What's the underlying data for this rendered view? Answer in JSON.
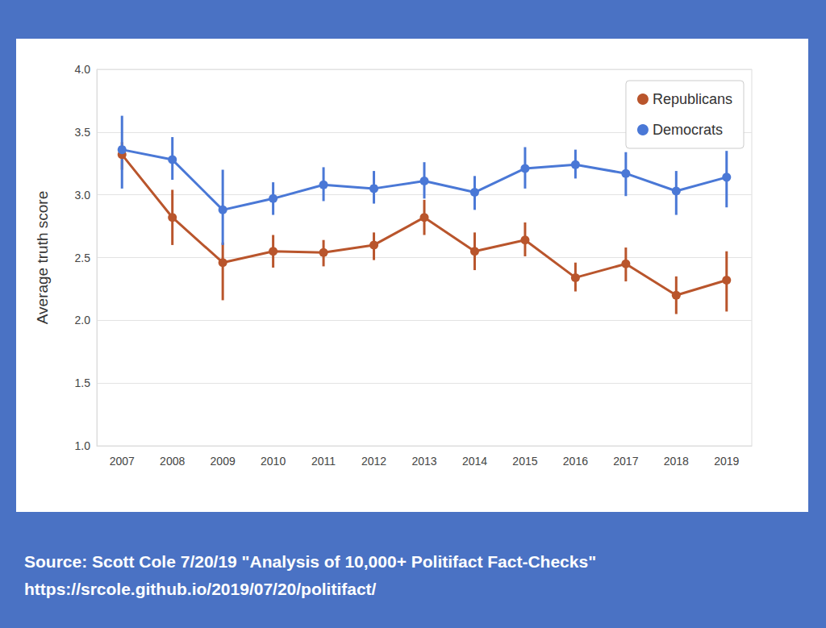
{
  "chart_data": {
    "type": "line",
    "y_label": "Average truth score",
    "categories": [
      "2007",
      "2008",
      "2009",
      "2010",
      "2011",
      "2012",
      "2013",
      "2014",
      "2015",
      "2016",
      "2017",
      "2018",
      "2019"
    ],
    "series": [
      {
        "name": "Republicans",
        "color": "#b9552c",
        "values": [
          3.32,
          2.82,
          2.46,
          2.55,
          2.54,
          2.6,
          2.82,
          2.55,
          2.64,
          2.34,
          2.45,
          2.2,
          2.32
        ],
        "lower": [
          3.2,
          2.6,
          2.16,
          2.42,
          2.43,
          2.48,
          2.68,
          2.4,
          2.51,
          2.23,
          2.31,
          2.05,
          2.07
        ],
        "upper": [
          3.42,
          3.04,
          2.62,
          2.68,
          2.64,
          2.7,
          2.96,
          2.7,
          2.78,
          2.46,
          2.58,
          2.35,
          2.55
        ]
      },
      {
        "name": "Democrats",
        "color": "#4a78d6",
        "values": [
          3.36,
          3.28,
          2.88,
          2.97,
          3.08,
          3.05,
          3.11,
          3.02,
          3.21,
          3.24,
          3.17,
          3.03,
          3.14
        ],
        "lower": [
          3.05,
          3.12,
          2.6,
          2.84,
          2.95,
          2.93,
          2.97,
          2.88,
          3.05,
          3.13,
          2.99,
          2.84,
          2.9
        ],
        "upper": [
          3.63,
          3.46,
          3.2,
          3.1,
          3.22,
          3.19,
          3.26,
          3.15,
          3.38,
          3.36,
          3.34,
          3.19,
          3.35
        ]
      }
    ],
    "ylim": [
      1.0,
      4.0
    ],
    "yticks": [
      {
        "value": 1.0,
        "label": "1.0"
      },
      1.5,
      {
        "value": 2.0,
        "label": "2.0"
      },
      2.5,
      {
        "value": 3.0,
        "label": "3.0"
      },
      3.5,
      {
        "value": 4.0,
        "label": "4.0"
      }
    ],
    "grid": true,
    "legend": "upper right",
    "marker": "circle",
    "annotations": [
      "Source: Scott Cole 7/20/19 \"Analysis of 10,000+ Politifact Fact-Checks\"",
      "https://srcole.github.io/2019/07/20/politifact/"
    ]
  }
}
